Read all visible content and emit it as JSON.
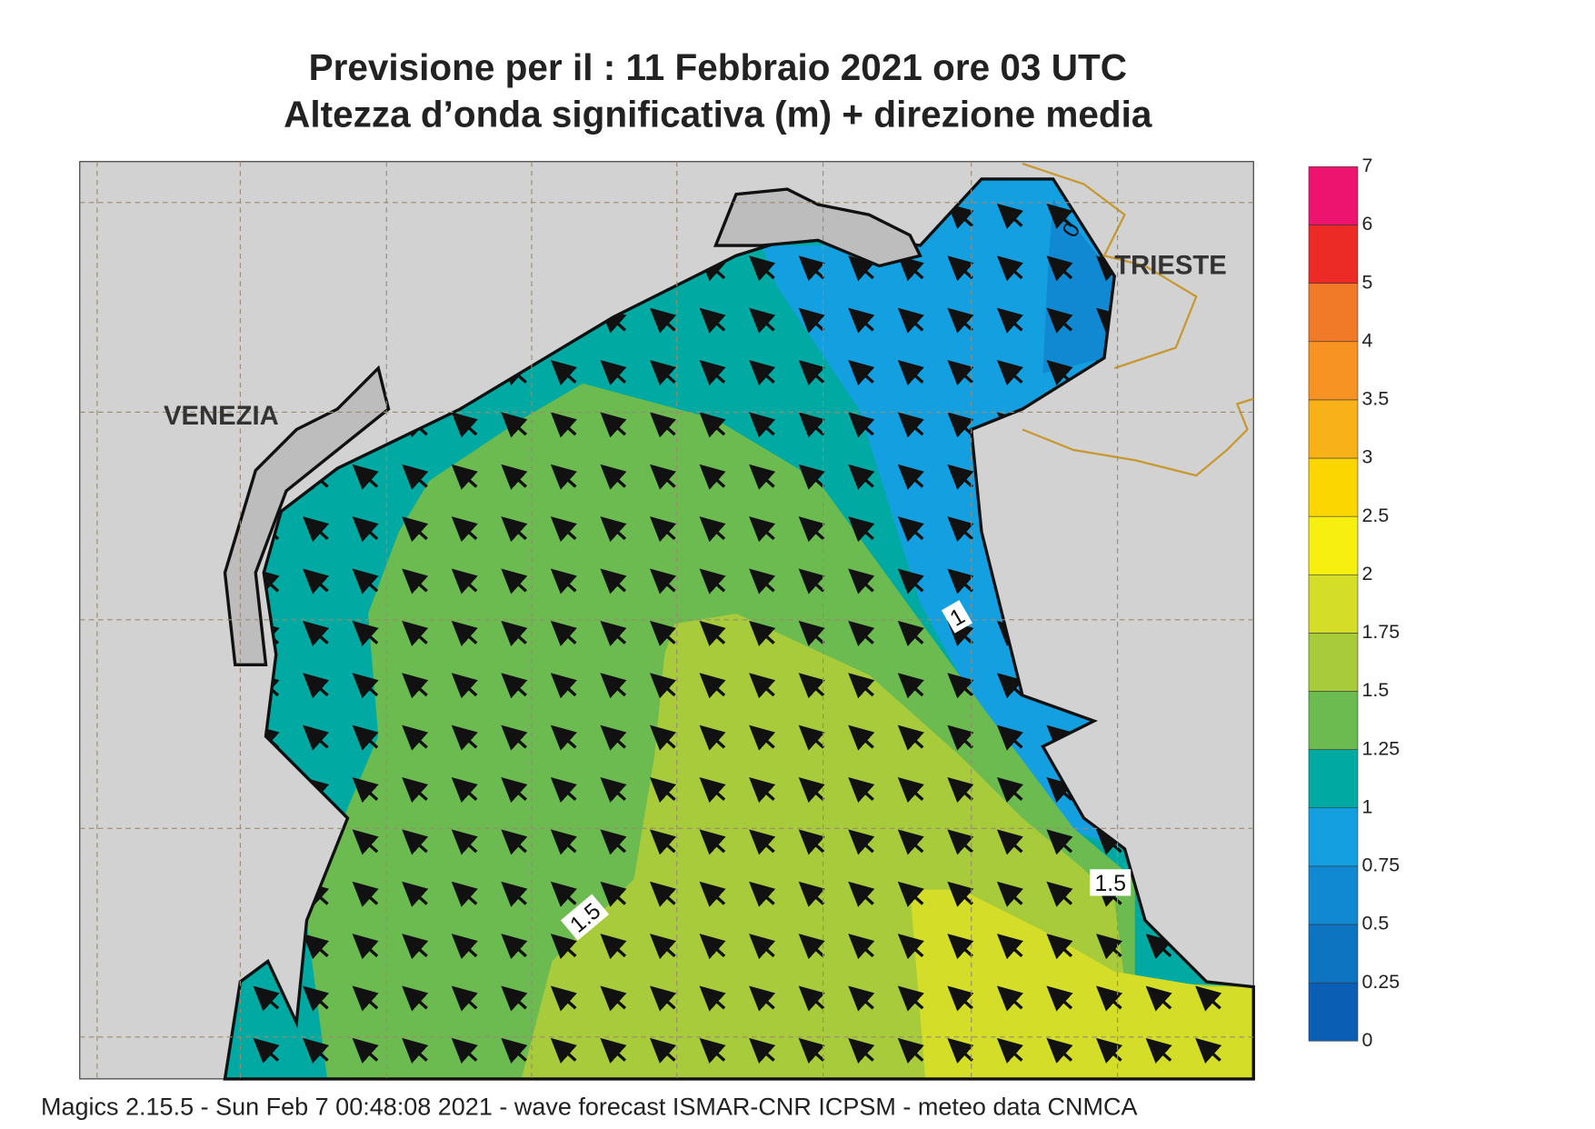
{
  "header": {
    "title": "Previsione per il  :  11  Febbraio 2021   ore 03 UTC",
    "subtitle": "Altezza d’onda significativa (m) + direzione media"
  },
  "map": {
    "places": [
      "VENEZIA",
      "TRIESTE"
    ],
    "contour_labels": [
      "1",
      "1.5",
      "1.5",
      "0"
    ]
  },
  "colorbar": {
    "levels": [
      0,
      0.25,
      0.5,
      0.75,
      1,
      1.25,
      1.5,
      1.75,
      2,
      2.5,
      3,
      3.5,
      4,
      5,
      6,
      7
    ],
    "colors": [
      "#0a5fb4",
      "#0d74c2",
      "#1189d2",
      "#14a0e0",
      "#00aaa2",
      "#6cbb50",
      "#a8cb3c",
      "#d4dd28",
      "#f6ef10",
      "#fcd600",
      "#f9b11a",
      "#f69322",
      "#f07a28",
      "#ec2a26",
      "#ec146e"
    ]
  },
  "footer": "Magics 2.15.5 - Sun Feb  7 00:48:08 2021 - wave forecast  ISMAR-CNR  ICPSM - meteo data   CNMCA"
}
